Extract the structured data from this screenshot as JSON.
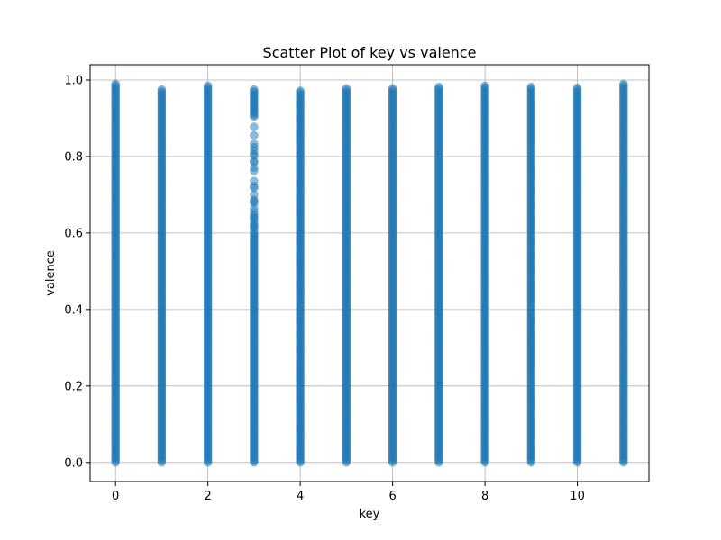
{
  "chart_data": {
    "type": "scatter",
    "title": "Scatter Plot of key vs valence",
    "xlabel": "key",
    "ylabel": "valence",
    "xlim": [
      -0.55,
      11.55
    ],
    "ylim": [
      -0.05,
      1.04
    ],
    "xticks": [
      0,
      2,
      4,
      6,
      8,
      10
    ],
    "yticks": [
      0.0,
      0.2,
      0.4,
      0.6,
      0.8,
      1.0
    ],
    "xtick_labels": [
      "0",
      "2",
      "4",
      "6",
      "8",
      "10"
    ],
    "ytick_labels": [
      "0.0",
      "0.2",
      "0.4",
      "0.6",
      "0.8",
      "1.0"
    ],
    "grid": true,
    "marker_color": "#1f77b4",
    "marker_alpha": 0.5,
    "series": [
      {
        "points_by_key": [
          {
            "key": 0,
            "valence_min": 0.0,
            "valence_max": 0.99
          },
          {
            "key": 1,
            "valence_min": 0.0,
            "valence_max": 0.975
          },
          {
            "key": 2,
            "valence_min": 0.0,
            "valence_max": 0.985
          },
          {
            "key": 3,
            "valence_min": 0.0,
            "valence_max": 0.975
          },
          {
            "key": 4,
            "valence_min": 0.0,
            "valence_max": 0.972
          },
          {
            "key": 5,
            "valence_min": 0.0,
            "valence_max": 0.978
          },
          {
            "key": 6,
            "valence_min": 0.0,
            "valence_max": 0.978
          },
          {
            "key": 7,
            "valence_min": 0.0,
            "valence_max": 0.982
          },
          {
            "key": 8,
            "valence_min": 0.0,
            "valence_max": 0.985
          },
          {
            "key": 9,
            "valence_min": 0.0,
            "valence_max": 0.982
          },
          {
            "key": 10,
            "valence_min": 0.0,
            "valence_max": 0.98
          },
          {
            "key": 11,
            "valence_min": 0.0,
            "valence_max": 0.99
          }
        ]
      }
    ]
  }
}
